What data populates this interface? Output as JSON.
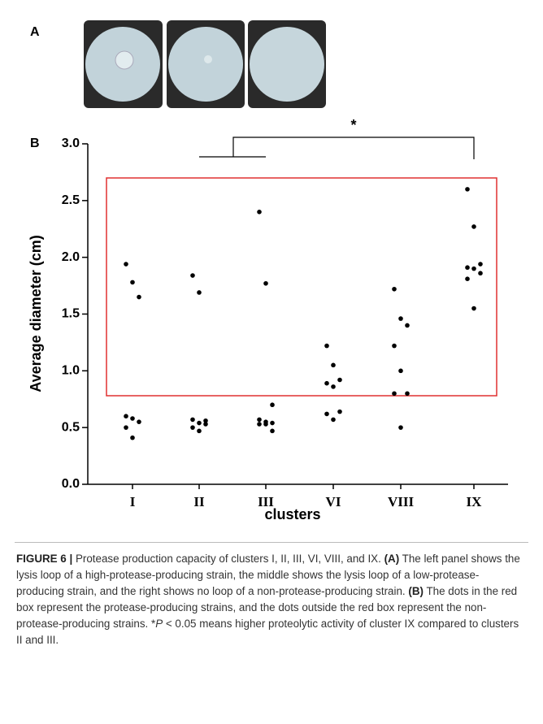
{
  "panel_a": {
    "label": "A"
  },
  "chart_data": {
    "type": "scatter",
    "panel_label": "B",
    "x_label": "clusters",
    "y_label": "Average diameter (cm)",
    "categories": [
      "I",
      "II",
      "III",
      "VI",
      "VIII",
      "IX"
    ],
    "values": [
      [
        1.94,
        1.78,
        1.65,
        0.6,
        0.58,
        0.55,
        0.5,
        0.41
      ],
      [
        1.84,
        1.69,
        0.56,
        0.57,
        0.54,
        0.53,
        0.5,
        0.47
      ],
      [
        2.4,
        1.77,
        0.7,
        0.57,
        0.55,
        0.54,
        0.53,
        0.53,
        0.47
      ],
      [
        1.22,
        1.05,
        0.92,
        0.89,
        0.86,
        0.64,
        0.62,
        0.57
      ],
      [
        1.72,
        1.46,
        1.4,
        1.22,
        1.0,
        0.8,
        0.8,
        0.5
      ],
      [
        2.6,
        2.27,
        1.94,
        1.91,
        1.9,
        1.86,
        1.81,
        1.55
      ]
    ],
    "color": "#000000",
    "ylim": [
      0,
      3
    ],
    "yticks": [
      {
        "value": 0,
        "label": "0.0"
      },
      {
        "value": 0.5,
        "label": "0.5"
      },
      {
        "value": 1,
        "label": "1.0"
      },
      {
        "value": 1.5,
        "label": "1.5"
      },
      {
        "value": 2,
        "label": "2.0"
      },
      {
        "value": 2.5,
        "label": "2.5"
      },
      {
        "value": 3,
        "label": "3.0"
      }
    ],
    "significance": "*"
  },
  "caption": {
    "label": "FIGURE 6 |",
    "intro": "Protease production capacity of clusters I, II, III, VI, VIII, and IX.",
    "a_label": "(A)",
    "a_text": "The left panel shows the lysis loop of a high-protease-producing strain, the middle shows the lysis loop of a low-protease-producing strain, and the right shows no loop of a non-protease-producing strain.",
    "b_label": "(B)",
    "b_text": "The dots in the red box represent the protease-producing strains, and the dots outside the red box represent the non-protease-producing strains. *",
    "p": "P",
    "p_text": "< 0.05 means higher proteolytic activity of cluster IX compared to clusters II and III."
  }
}
